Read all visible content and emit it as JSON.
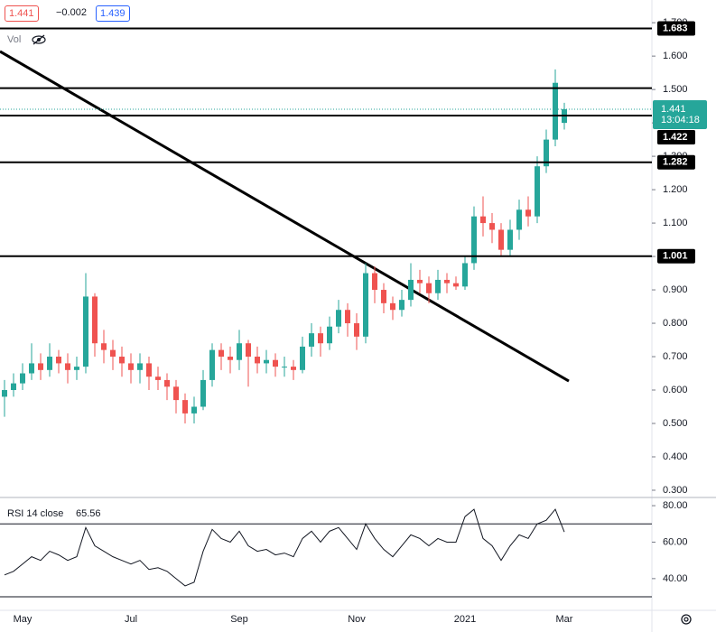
{
  "header": {
    "price": "1.441",
    "change": "−0.002",
    "bid": "1.439",
    "vol_label": "Vol"
  },
  "chart_data": [
    {
      "type": "candlestick",
      "categories": [
        null,
        null,
        "May",
        null,
        null,
        null,
        null,
        null,
        null,
        null,
        null,
        null,
        null,
        null,
        "Jul",
        null,
        null,
        null,
        null,
        null,
        null,
        null,
        null,
        null,
        null,
        null,
        "Sep",
        null,
        null,
        null,
        null,
        null,
        null,
        null,
        null,
        null,
        null,
        null,
        null,
        "Nov",
        null,
        null,
        null,
        null,
        null,
        null,
        null,
        null,
        null,
        null,
        null,
        "2021",
        null,
        null,
        null,
        null,
        null,
        null,
        null,
        null,
        null,
        null,
        "Mar"
      ],
      "open": [
        0.58,
        0.6,
        0.62,
        0.65,
        0.68,
        0.66,
        0.7,
        0.68,
        0.66,
        0.67,
        0.88,
        0.74,
        0.72,
        0.7,
        0.68,
        0.66,
        0.68,
        0.64,
        0.63,
        0.61,
        0.57,
        0.53,
        0.55,
        0.63,
        0.72,
        0.7,
        0.69,
        0.74,
        0.7,
        0.68,
        0.69,
        0.67,
        0.67,
        0.66,
        0.73,
        0.77,
        0.74,
        0.79,
        0.84,
        0.8,
        0.76,
        0.95,
        0.9,
        0.86,
        0.84,
        0.87,
        0.93,
        0.92,
        0.89,
        0.93,
        0.92,
        0.91,
        0.98,
        1.12,
        1.1,
        1.08,
        1.02,
        1.08,
        1.14,
        1.12,
        1.27,
        1.35,
        1.4
      ],
      "high": [
        0.63,
        0.65,
        0.68,
        0.74,
        0.71,
        0.74,
        0.72,
        0.71,
        0.7,
        0.95,
        0.89,
        0.78,
        0.75,
        0.73,
        0.71,
        0.71,
        0.7,
        0.67,
        0.65,
        0.63,
        0.59,
        0.58,
        0.66,
        0.74,
        0.74,
        0.73,
        0.78,
        0.75,
        0.73,
        0.72,
        0.71,
        0.7,
        0.69,
        0.76,
        0.8,
        0.79,
        0.82,
        0.87,
        0.86,
        0.83,
        0.98,
        0.97,
        0.92,
        0.88,
        0.9,
        0.98,
        0.96,
        0.94,
        0.96,
        0.95,
        0.94,
        1.0,
        1.15,
        1.18,
        1.13,
        1.1,
        1.11,
        1.17,
        1.18,
        1.3,
        1.38,
        1.56,
        1.46
      ],
      "low": [
        0.52,
        0.58,
        0.6,
        0.63,
        0.63,
        0.64,
        0.65,
        0.62,
        0.63,
        0.65,
        0.7,
        0.68,
        0.66,
        0.64,
        0.62,
        0.62,
        0.6,
        0.6,
        0.57,
        0.53,
        0.5,
        0.5,
        0.54,
        0.61,
        0.66,
        0.65,
        0.66,
        0.61,
        0.65,
        0.65,
        0.64,
        0.64,
        0.63,
        0.65,
        0.7,
        0.7,
        0.72,
        0.77,
        0.76,
        0.72,
        0.74,
        0.86,
        0.83,
        0.81,
        0.82,
        0.85,
        0.89,
        0.86,
        0.87,
        0.89,
        0.9,
        0.9,
        0.96,
        1.06,
        1.04,
        1.0,
        1.0,
        1.05,
        1.09,
        1.1,
        1.25,
        1.33,
        1.38
      ],
      "close": [
        0.6,
        0.62,
        0.65,
        0.68,
        0.66,
        0.7,
        0.68,
        0.66,
        0.67,
        0.88,
        0.74,
        0.72,
        0.7,
        0.68,
        0.66,
        0.68,
        0.64,
        0.63,
        0.61,
        0.57,
        0.53,
        0.55,
        0.63,
        0.72,
        0.7,
        0.69,
        0.74,
        0.7,
        0.68,
        0.69,
        0.67,
        0.67,
        0.66,
        0.73,
        0.77,
        0.74,
        0.79,
        0.84,
        0.8,
        0.76,
        0.95,
        0.9,
        0.86,
        0.84,
        0.87,
        0.93,
        0.92,
        0.89,
        0.93,
        0.92,
        0.91,
        0.98,
        1.12,
        1.1,
        1.08,
        1.02,
        1.08,
        1.14,
        1.12,
        1.27,
        1.35,
        1.52,
        1.441
      ],
      "up_color": "#26a69a",
      "down_color": "#ef5350",
      "ylim": [
        0.281,
        1.768
      ],
      "yticks": [
        {
          "value": 0.3,
          "label": "0.300"
        },
        {
          "value": 0.4,
          "label": "0.400"
        },
        {
          "value": 0.5,
          "label": "0.500"
        },
        {
          "value": 0.6,
          "label": "0.600"
        },
        {
          "value": 0.7,
          "label": "0.700"
        },
        {
          "value": 0.8,
          "label": "0.800"
        },
        {
          "value": 0.9,
          "label": "0.900"
        },
        {
          "value": 1.0,
          "label": "1.000"
        },
        {
          "value": 1.1,
          "label": "1.100"
        },
        {
          "value": 1.2,
          "label": "1.200"
        },
        {
          "value": 1.3,
          "label": "1.300"
        },
        {
          "value": 1.4,
          "label": "1.400"
        },
        {
          "value": 1.5,
          "label": "1.500"
        },
        {
          "value": 1.6,
          "label": "1.600"
        },
        {
          "value": 1.7,
          "label": "1.700"
        }
      ],
      "horizontal_lines": [
        1.683,
        1.504,
        1.422,
        1.282,
        1.001
      ],
      "trendline": {
        "start": 1.614,
        "end": 0.627
      },
      "price_line_color": "#26a69a",
      "countdown": "13:04:18"
    },
    {
      "type": "line",
      "title": "RSI 14 close",
      "series": [
        {
          "color": "#131722",
          "values": [
            42,
            44,
            48,
            52,
            50,
            55,
            53,
            50,
            52,
            68,
            58,
            55,
            52,
            50,
            48,
            50,
            45,
            46,
            44,
            40,
            36,
            38,
            55,
            67,
            62,
            60,
            66,
            58,
            55,
            56,
            53,
            54,
            52,
            62,
            66,
            60,
            66,
            68,
            62,
            56,
            70,
            62,
            56,
            52,
            58,
            64,
            62,
            58,
            62,
            60,
            60,
            74,
            78,
            62,
            58,
            50,
            58,
            64,
            62,
            70,
            72,
            78,
            65.56
          ]
        }
      ],
      "ylim": [
        22.6,
        84
      ],
      "yticks": [
        {
          "value": 40,
          "label": "40.00"
        },
        {
          "value": 60,
          "label": "60.00"
        },
        {
          "value": 80,
          "label": "80.00"
        }
      ],
      "bands": [
        30,
        70
      ]
    }
  ]
}
